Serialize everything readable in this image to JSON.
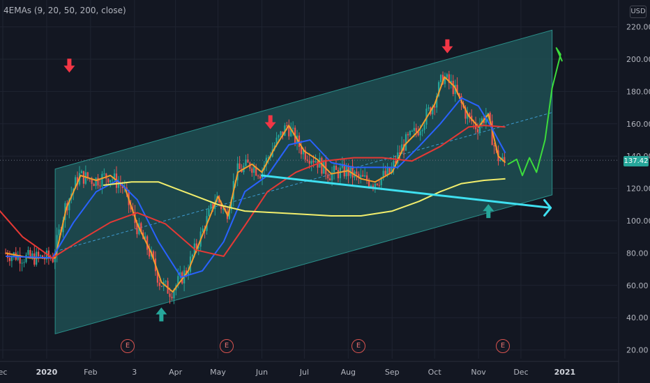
{
  "indicator_label": "4EMAs (9, 20, 50, 200, close)",
  "currency": "USD",
  "last_price": "137.42",
  "earnings_marker": "E",
  "colors": {
    "background": "#131722",
    "channel_fill": "#1f4f52",
    "ema9": "#f59c2c",
    "ema20": "#2962ff",
    "ema50": "#e53935",
    "ema200": "#f2ee6c",
    "candle_up": "#26a69a",
    "candle_down": "#ef5350",
    "arrow_down": "#f23645",
    "arrow_up": "#26a69a",
    "trendline": "#3fe0f0",
    "projection": "#3cdc3c"
  },
  "chart_data": {
    "type": "line",
    "title": "",
    "xlabel": "",
    "ylabel": "",
    "x_tick_labels": [
      "ec",
      "2020",
      "Feb",
      "3",
      "Apr",
      "May",
      "Jun",
      "Jul",
      "Aug",
      "Sep",
      "Oct",
      "Nov",
      "Dec",
      "2021"
    ],
    "y_tick_labels": [
      "20.00",
      "40.00",
      "60.00",
      "80.00",
      "100.00",
      "120.00",
      "140.00",
      "160.00",
      "180.00",
      "200.00",
      "220.00"
    ],
    "ylim": [
      13,
      227
    ],
    "grid": true,
    "series": [
      {
        "name": "EMA 9",
        "color": "#f59c2c",
        "x": [
          "2019-12-03",
          "2019-12-20",
          "2020-01-07",
          "2020-01-15",
          "2020-01-25",
          "2020-02-05",
          "2020-02-15",
          "2020-02-25",
          "2020-03-05",
          "2020-03-15",
          "2020-03-22",
          "2020-03-30",
          "2020-04-10",
          "2020-04-20",
          "2020-05-01",
          "2020-05-08",
          "2020-05-15",
          "2020-05-25",
          "2020-06-01",
          "2020-06-10",
          "2020-06-20",
          "2020-07-01",
          "2020-07-10",
          "2020-07-20",
          "2020-08-01",
          "2020-08-10",
          "2020-08-20",
          "2020-09-01",
          "2020-09-10",
          "2020-09-20",
          "2020-10-01",
          "2020-10-08",
          "2020-10-15",
          "2020-10-25",
          "2020-11-01",
          "2020-11-08",
          "2020-11-15",
          "2020-11-20"
        ],
        "y": [
          80,
          77,
          77,
          108,
          128,
          125,
          128,
          121,
          98,
          80,
          62,
          56,
          69,
          91,
          115,
          103,
          130,
          135,
          130,
          145,
          159,
          143,
          138,
          129,
          131,
          126,
          124,
          130,
          147,
          156,
          172,
          189,
          183,
          165,
          158,
          166,
          140,
          136
        ]
      },
      {
        "name": "EMA 20",
        "color": "#2962ff",
        "x": [
          "2019-12-03",
          "2020-01-05",
          "2020-01-20",
          "2020-02-05",
          "2020-02-20",
          "2020-03-05",
          "2020-03-20",
          "2020-04-05",
          "2020-04-20",
          "2020-05-05",
          "2020-05-20",
          "2020-06-05",
          "2020-06-20",
          "2020-07-05",
          "2020-07-20",
          "2020-08-05",
          "2020-08-20",
          "2020-09-05",
          "2020-09-20",
          "2020-10-05",
          "2020-10-20",
          "2020-11-01",
          "2020-11-10",
          "2020-11-20"
        ],
        "y": [
          78,
          77,
          99,
          118,
          125,
          113,
          87,
          65,
          69,
          87,
          118,
          128,
          147,
          150,
          136,
          133,
          133,
          133,
          146,
          160,
          176,
          171,
          158,
          142
        ]
      },
      {
        "name": "EMA 50",
        "color": "#e53935",
        "x": [
          "2019-11-25",
          "2019-12-15",
          "2020-01-05",
          "2020-01-25",
          "2020-02-15",
          "2020-03-05",
          "2020-03-25",
          "2020-04-15",
          "2020-05-05",
          "2020-05-20",
          "2020-06-05",
          "2020-06-25",
          "2020-07-15",
          "2020-08-05",
          "2020-08-25",
          "2020-09-15",
          "2020-10-05",
          "2020-10-25",
          "2020-11-05",
          "2020-11-20"
        ],
        "y": [
          110,
          90,
          77,
          88,
          99,
          105,
          98,
          82,
          78,
          97,
          118,
          130,
          137,
          139,
          139,
          137,
          146,
          158,
          159,
          158
        ]
      },
      {
        "name": "EMA 200",
        "color": "#f2ee6c",
        "x": [
          "2020-02-10",
          "2020-03-01",
          "2020-03-20",
          "2020-04-10",
          "2020-05-01",
          "2020-05-20",
          "2020-06-10",
          "2020-07-01",
          "2020-07-20",
          "2020-08-10",
          "2020-09-01",
          "2020-09-20",
          "2020-10-05",
          "2020-10-20",
          "2020-11-05",
          "2020-11-20"
        ],
        "y": [
          122,
          124,
          124,
          117,
          110,
          106,
          105,
          104,
          103,
          103,
          106,
          112,
          118,
          123,
          125,
          126
        ]
      }
    ],
    "annotations": {
      "channel_polygon": [
        [
          "2020-01-07",
          132
        ],
        [
          "2020-12-23",
          218
        ],
        [
          "2020-12-23",
          116
        ],
        [
          "2020-01-07",
          30
        ]
      ],
      "channel_midline": [
        [
          "2020-01-07",
          81
        ],
        [
          "2020-12-23",
          167
        ]
      ],
      "last_price_line": 137.42,
      "down_arrows": [
        [
          "2020-01-17",
          196
        ],
        [
          "2020-06-07",
          161
        ],
        [
          "2020-10-10",
          208
        ]
      ],
      "up_arrows": [
        [
          "2020-03-22",
          42
        ],
        [
          "2020-11-08",
          106
        ]
      ],
      "trendline_arrow": [
        [
          "2020-06-01",
          128
        ],
        [
          "2020-12-22",
          108
        ]
      ],
      "earnings_dates": [
        "2020-03-05",
        "2020-05-06",
        "2020-08-05",
        "2020-11-12"
      ],
      "projection": [
        [
          "2020-11-22",
          135
        ],
        [
          "2020-11-28",
          138
        ],
        [
          "2020-12-02",
          128
        ],
        [
          "2020-12-07",
          139
        ],
        [
          "2020-12-12",
          130
        ],
        [
          "2020-12-18",
          150
        ],
        [
          "2020-12-23",
          182
        ],
        [
          "2020-12-29",
          203
        ],
        [
          "2020-12-26",
          207
        ],
        [
          "2020-12-30",
          199
        ],
        [
          "2020-12-28",
          203
        ]
      ]
    }
  }
}
